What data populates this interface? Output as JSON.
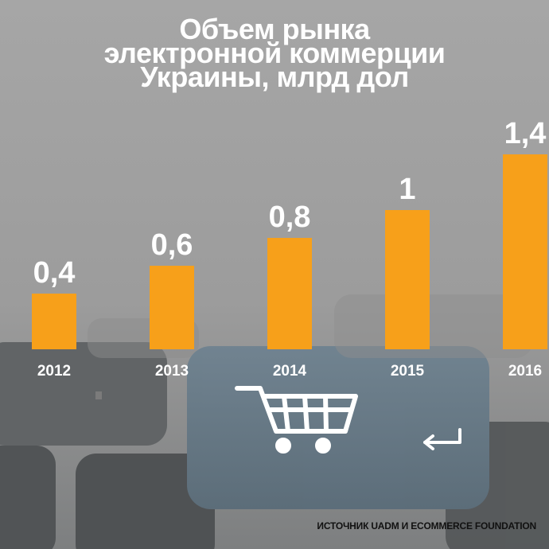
{
  "title_lines": [
    "Объем рынка",
    "электронной коммерции",
    "Украины, млрд дол"
  ],
  "source": "ИСТОЧНИК UADM И ECOMMERCE FOUNDATION",
  "colors": {
    "bar": "#f7a01a",
    "text": "#ffffff",
    "background": "#a3a3a3"
  },
  "chart_data": {
    "type": "bar",
    "title": "Объем рынка электронной коммерции Украины, млрд дол",
    "categories": [
      "2012",
      "2013",
      "2014",
      "2015",
      "2016"
    ],
    "values": [
      0.4,
      0.6,
      0.8,
      1.0,
      1.4
    ],
    "value_labels": [
      "0,4",
      "0,6",
      "0,8",
      "1",
      "1,4"
    ],
    "xlabel": "",
    "ylabel": "",
    "ylim": [
      0,
      1.4
    ],
    "grid": false,
    "legend": "none"
  }
}
